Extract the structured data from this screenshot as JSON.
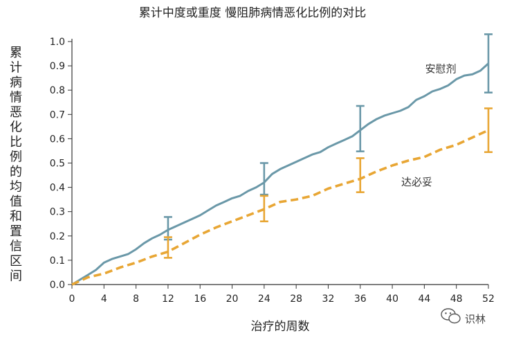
{
  "chart_data": {
    "type": "line",
    "title": "累计中度或重度 慢阻肺病情恶化比例的对比",
    "xlabel": "治疗的周数",
    "ylabel": "累计病情恶化比例的均值和置信区间",
    "xlim": [
      0,
      52
    ],
    "ylim": [
      0,
      1.0
    ],
    "xticks": [
      0,
      4,
      8,
      12,
      16,
      20,
      24,
      28,
      32,
      36,
      40,
      44,
      48,
      52
    ],
    "yticks": [
      0.0,
      0.1,
      0.2,
      0.3,
      0.4,
      0.5,
      0.6,
      0.7,
      0.8,
      0.9,
      1.0
    ],
    "ytick_labels": [
      "0.0",
      "0.1",
      "0.2",
      "0.3",
      "0.4",
      "0.5",
      "0.6",
      "0.7",
      "0.8",
      "0.9",
      "1.0"
    ],
    "grid": false,
    "series": [
      {
        "name": "安慰剂",
        "color": "#6a98a8",
        "style": "solid",
        "x": [
          0,
          1,
          2,
          3,
          4,
          5,
          6,
          7,
          8,
          9,
          10,
          11,
          12,
          13,
          14,
          15,
          16,
          17,
          18,
          19,
          20,
          21,
          22,
          23,
          24,
          25,
          26,
          27,
          28,
          29,
          30,
          31,
          32,
          33,
          34,
          35,
          36,
          37,
          38,
          39,
          40,
          41,
          42,
          43,
          44,
          45,
          46,
          47,
          48,
          49,
          50,
          51,
          52
        ],
        "y": [
          0.0,
          0.02,
          0.04,
          0.06,
          0.09,
          0.105,
          0.115,
          0.125,
          0.145,
          0.17,
          0.19,
          0.205,
          0.225,
          0.24,
          0.255,
          0.27,
          0.285,
          0.305,
          0.325,
          0.34,
          0.355,
          0.365,
          0.385,
          0.4,
          0.42,
          0.455,
          0.475,
          0.49,
          0.505,
          0.52,
          0.535,
          0.545,
          0.565,
          0.58,
          0.595,
          0.61,
          0.635,
          0.66,
          0.68,
          0.695,
          0.705,
          0.715,
          0.73,
          0.76,
          0.775,
          0.795,
          0.805,
          0.82,
          0.845,
          0.86,
          0.865,
          0.88,
          0.91
        ]
      },
      {
        "name": "达必妥",
        "color": "#e8a634",
        "style": "dashed",
        "x": [
          0,
          2,
          4,
          6,
          8,
          10,
          12,
          14,
          16,
          18,
          20,
          22,
          24,
          26,
          28,
          30,
          32,
          34,
          36,
          38,
          40,
          42,
          44,
          46,
          48,
          50,
          52
        ],
        "y": [
          0.0,
          0.03,
          0.045,
          0.07,
          0.09,
          0.115,
          0.135,
          0.17,
          0.205,
          0.235,
          0.26,
          0.285,
          0.31,
          0.34,
          0.35,
          0.365,
          0.395,
          0.415,
          0.435,
          0.465,
          0.49,
          0.51,
          0.525,
          0.555,
          0.575,
          0.605,
          0.635
        ]
      }
    ],
    "error_bars": [
      {
        "series": "安慰剂",
        "color": "#6a98a8",
        "points": [
          {
            "x": 12,
            "y": 0.228,
            "lo": 0.185,
            "hi": 0.278
          },
          {
            "x": 24,
            "y": 0.425,
            "lo": 0.37,
            "hi": 0.5
          },
          {
            "x": 36,
            "y": 0.645,
            "lo": 0.548,
            "hi": 0.735
          },
          {
            "x": 52,
            "y": 0.91,
            "lo": 0.79,
            "hi": 1.03
          }
        ]
      },
      {
        "series": "达必妥",
        "color": "#e8a634",
        "points": [
          {
            "x": 12,
            "y": 0.14,
            "lo": 0.11,
            "hi": 0.195
          },
          {
            "x": 24,
            "y": 0.31,
            "lo": 0.26,
            "hi": 0.365
          },
          {
            "x": 36,
            "y": 0.44,
            "lo": 0.38,
            "hi": 0.52
          },
          {
            "x": 52,
            "y": 0.635,
            "lo": 0.545,
            "hi": 0.725
          }
        ]
      }
    ],
    "annotations": [
      {
        "text": "安慰剂",
        "series": "安慰剂",
        "x": 48,
        "y": 0.89,
        "color": "#333333"
      },
      {
        "text": "达必妥",
        "series": "达必妥",
        "x": 45,
        "y": 0.425,
        "color": "#333333"
      }
    ]
  },
  "watermark": {
    "text": "识林",
    "icon": "wechat-icon"
  }
}
